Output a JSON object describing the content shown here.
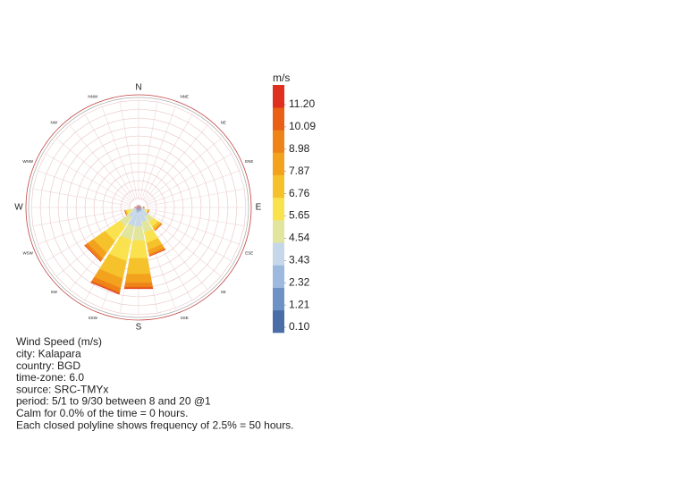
{
  "chart_data": {
    "type": "windrose",
    "categories": [
      "N",
      "NNE",
      "NE",
      "ENE",
      "E",
      "ESE",
      "SE",
      "SSE",
      "S",
      "SSW",
      "SW",
      "WSW",
      "W",
      "WNW",
      "NW",
      "NNW"
    ],
    "rlim": [
      0,
      30
    ],
    "rticks": [
      2.5,
      5,
      7.5,
      10,
      12.5,
      15,
      17.5,
      20,
      22.5,
      25,
      27.5,
      30
    ],
    "series": [
      {
        "color": "#4a6da8",
        "values": [
          0,
          0,
          0,
          0,
          0,
          0,
          0,
          0,
          0,
          0,
          0,
          0,
          0,
          0,
          0,
          0
        ]
      },
      {
        "color": "#6f92c6",
        "values": [
          0.1,
          0,
          0,
          0,
          0.1,
          0.2,
          0.2,
          0.2,
          0.2,
          0.2,
          0.2,
          0.2,
          0.1,
          0,
          0,
          0
        ]
      },
      {
        "color": "#9db9dd",
        "values": [
          0.1,
          0.1,
          0.1,
          0.2,
          0.4,
          0.6,
          1,
          1,
          1.2,
          1.2,
          0.8,
          0.5,
          0.3,
          0.1,
          0,
          0.1
        ]
      },
      {
        "color": "#c6d7e9",
        "values": [
          0,
          0.1,
          0.1,
          0.2,
          0.6,
          1,
          2,
          3,
          4,
          4,
          2.5,
          1,
          0.4,
          0.1,
          0,
          0
        ]
      },
      {
        "color": "#e2e59e",
        "values": [
          0,
          0,
          0.1,
          0.1,
          0.3,
          0.7,
          2,
          3,
          4,
          4,
          3,
          1,
          0.2,
          0,
          0,
          0
        ]
      },
      {
        "color": "#fae24e",
        "values": [
          0,
          0,
          0,
          0,
          0.1,
          0.4,
          1.5,
          3,
          5,
          6,
          5,
          0.8,
          0,
          0,
          0,
          0
        ]
      },
      {
        "color": "#f6c22b",
        "values": [
          0,
          0,
          0,
          0,
          0,
          0.1,
          0.8,
          2,
          4.5,
          5,
          4,
          0.4,
          0,
          0,
          0,
          0
        ]
      },
      {
        "color": "#f3a21e",
        "values": [
          0,
          0,
          0,
          0,
          0,
          0,
          0.4,
          1.2,
          2.5,
          2.7,
          2,
          0.1,
          0,
          0,
          0,
          0
        ]
      },
      {
        "color": "#ee8418",
        "values": [
          0,
          0,
          0,
          0,
          0,
          0,
          0.1,
          0.5,
          1.2,
          1.3,
          0.8,
          0,
          0,
          0,
          0,
          0
        ]
      },
      {
        "color": "#e95f15",
        "values": [
          0,
          0,
          0,
          0,
          0,
          0,
          0,
          0.1,
          0.4,
          0.4,
          0.2,
          0,
          0,
          0,
          0,
          0
        ]
      },
      {
        "color": "#de301c",
        "values": [
          0,
          0,
          0,
          0,
          0,
          0,
          0,
          0,
          0.1,
          0.1,
          0,
          0,
          0,
          0,
          0,
          0
        ]
      }
    ],
    "legend_title": "m/s",
    "colorbar_ticks": [
      {
        "value": 0.1,
        "label": "0.10"
      },
      1.21,
      2.32,
      3.43,
      4.54,
      5.65,
      6.76,
      7.87,
      8.98,
      10.09,
      {
        "value": 11.2,
        "label": "11.20"
      }
    ],
    "notes": [
      "Wind Speed (m/s)",
      "city: Kalapara",
      "country: BGD",
      "time-zone: 6.0",
      "source: SRC-TMYx",
      "period: 5/1 to 9/30 between 8 and 20 @1",
      "Calm for 0.0% of the time = 0 hours.",
      "Each closed polyline shows frequency of 2.5% = 50 hours."
    ]
  }
}
